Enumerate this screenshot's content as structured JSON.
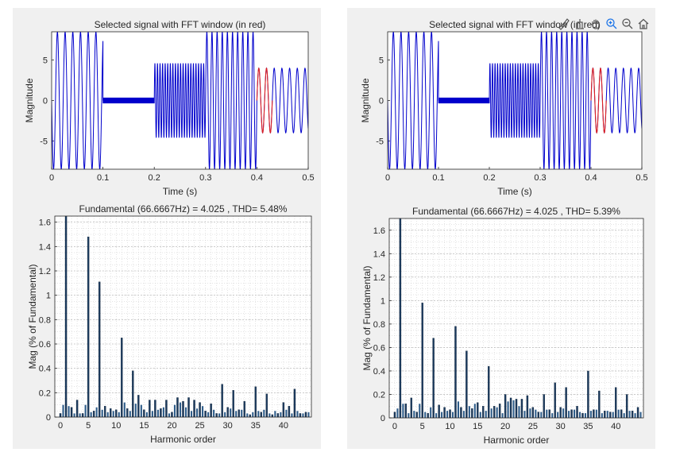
{
  "chart_data": [
    {
      "type": "line",
      "title": "Selected signal with FFT window (in red)",
      "xlabel": "Time (s)",
      "ylabel": "Magnitude",
      "xlim": [
        0,
        0.5
      ],
      "ylim": [
        -8.5,
        8.5
      ],
      "xticks": [
        "0",
        "0.1",
        "0.2",
        "0.3",
        "0.4",
        "0.5"
      ],
      "yticks": [
        "-5",
        "0",
        "5"
      ],
      "series": [
        {
          "color": "#0000cc",
          "segments": [
            {
              "t0": 0.0,
              "t1": 0.1,
              "freq": 66.6667,
              "amp": 8.5,
              "phase": 3.14159
            },
            {
              "t0": 0.1,
              "t1": 0.2,
              "freq": 2000,
              "amp": 0.35,
              "phase": 0
            },
            {
              "t0": 0.2,
              "t1": 0.3,
              "freq": 200,
              "amp": 4.6,
              "phase": 0
            },
            {
              "t0": 0.3,
              "t1": 0.4,
              "freq": 100,
              "amp": 8.5,
              "phase": 0
            },
            {
              "t0": 0.4,
              "t1": 0.5,
              "freq": 66.6667,
              "amp": 4.0,
              "phase": 0
            }
          ]
        },
        {
          "color": "#e02020",
          "window": [
            0.4,
            0.43
          ],
          "freq": 66.6667,
          "amp": 4.0
        }
      ]
    },
    {
      "type": "bar",
      "title": "Fundamental (66.6667Hz) = 4.025 , THD= 5.48%",
      "xlabel": "Harmonic order",
      "ylabel": "Mag (% of Fundamental)",
      "xlim": [
        -1,
        45
      ],
      "ylim": [
        0,
        1.65
      ],
      "xticks": [
        "0",
        "5",
        "10",
        "15",
        "20",
        "25",
        "30",
        "35",
        "40"
      ],
      "yticks": [
        "0",
        "0.2",
        "0.4",
        "0.6",
        "0.8",
        "1",
        "1.2",
        "1.4",
        "1.6"
      ],
      "grid": true,
      "bar_width": 0.5,
      "values": [
        0.03,
        1.65,
        0.08,
        0.14,
        0.03,
        1.48,
        0.05,
        1.11,
        0.09,
        0.07,
        0.06,
        0.65,
        0.07,
        0.38,
        0.18,
        0.06,
        0.14,
        0.14,
        0.07,
        0.14,
        0.04,
        0.16,
        0.13,
        0.16,
        0.14,
        0.12,
        0.05,
        0.11,
        0.03,
        0.27,
        0.08,
        0.22,
        0.06,
        0.13,
        0.02,
        0.25,
        0.04,
        0.19,
        0.02,
        0.03,
        0.12,
        0.09,
        0.23,
        0.03,
        0.04
      ],
      "minor": [
        0.1,
        0.09,
        0.03,
        0.03,
        0.1,
        0.04,
        0.08,
        0.06,
        0.04,
        0.05,
        0.04,
        0.12,
        0.05,
        0.11,
        0.1,
        0.04,
        0.05,
        0.06,
        0.08,
        0.03,
        0.1,
        0.12,
        0.08,
        0.05,
        0.07,
        0.09,
        0.04,
        0.06,
        0.03,
        0.04,
        0.07,
        0.05,
        0.06,
        0.03,
        0.04,
        0.05,
        0.06,
        0.03,
        0.05,
        0.04,
        0.06,
        0.03,
        0.05,
        0.03,
        0.04
      ]
    },
    {
      "type": "line",
      "title": "Selected signal with FFT window (in red)",
      "xlabel": "Time (s)",
      "ylabel": "Magnitude",
      "xlim": [
        0,
        0.5
      ],
      "ylim": [
        -8.5,
        8.5
      ],
      "xticks": [
        "0",
        "0.1",
        "0.2",
        "0.3",
        "0.4",
        "0.5"
      ],
      "yticks": [
        "-5",
        "0",
        "5"
      ],
      "series": [
        {
          "color": "#0000cc",
          "segments": [
            {
              "t0": 0.0,
              "t1": 0.1,
              "freq": 66.6667,
              "amp": 8.5,
              "phase": 3.14159
            },
            {
              "t0": 0.1,
              "t1": 0.2,
              "freq": 2000,
              "amp": 0.35,
              "phase": 0
            },
            {
              "t0": 0.2,
              "t1": 0.3,
              "freq": 200,
              "amp": 4.6,
              "phase": 0
            },
            {
              "t0": 0.3,
              "t1": 0.4,
              "freq": 100,
              "amp": 8.5,
              "phase": 0
            },
            {
              "t0": 0.4,
              "t1": 0.5,
              "freq": 66.6667,
              "amp": 4.0,
              "phase": 0
            }
          ]
        },
        {
          "color": "#e02020",
          "window": [
            0.4,
            0.43
          ],
          "freq": 66.6667,
          "amp": 4.0
        }
      ]
    },
    {
      "type": "bar",
      "title": "Fundamental (66.6667Hz) = 4.025 , THD= 5.39%",
      "xlabel": "Harmonic order",
      "ylabel": "Mag (% of Fundamental)",
      "xlim": [
        -1,
        45
      ],
      "ylim": [
        0,
        1.7
      ],
      "xticks": [
        "0",
        "5",
        "10",
        "15",
        "20",
        "25",
        "30",
        "35",
        "40"
      ],
      "yticks": [
        "0",
        "0.2",
        "0.4",
        "0.6",
        "0.8",
        "1",
        "1.2",
        "1.4",
        "1.6"
      ],
      "grid": true,
      "bar_width": 0.5,
      "values": [
        0.05,
        1.7,
        0.12,
        0.17,
        0.05,
        0.98,
        0.04,
        0.68,
        0.11,
        0.09,
        0.07,
        0.78,
        0.09,
        0.57,
        0.08,
        0.13,
        0.1,
        0.44,
        0.1,
        0.12,
        0.2,
        0.17,
        0.16,
        0.16,
        0.19,
        0.09,
        0.05,
        0.2,
        0.07,
        0.3,
        0.09,
        0.26,
        0.07,
        0.1,
        0.04,
        0.4,
        0.07,
        0.23,
        0.06,
        0.05,
        0.26,
        0.07,
        0.2,
        0.06,
        0.09
      ],
      "minor": [
        0.08,
        0.12,
        0.04,
        0.06,
        0.12,
        0.05,
        0.09,
        0.04,
        0.05,
        0.06,
        0.05,
        0.14,
        0.06,
        0.1,
        0.12,
        0.05,
        0.06,
        0.08,
        0.09,
        0.04,
        0.14,
        0.15,
        0.1,
        0.06,
        0.08,
        0.07,
        0.05,
        0.07,
        0.04,
        0.05,
        0.08,
        0.06,
        0.07,
        0.05,
        0.04,
        0.06,
        0.07,
        0.04,
        0.06,
        0.05,
        0.07,
        0.04,
        0.06,
        0.04,
        0.05
      ]
    }
  ],
  "toolbar": {
    "icons": [
      "brush-icon",
      "data-tips-icon",
      "pan-icon",
      "zoom-in-icon",
      "zoom-out-icon",
      "home-icon"
    ],
    "accent": "#1a73e8"
  }
}
